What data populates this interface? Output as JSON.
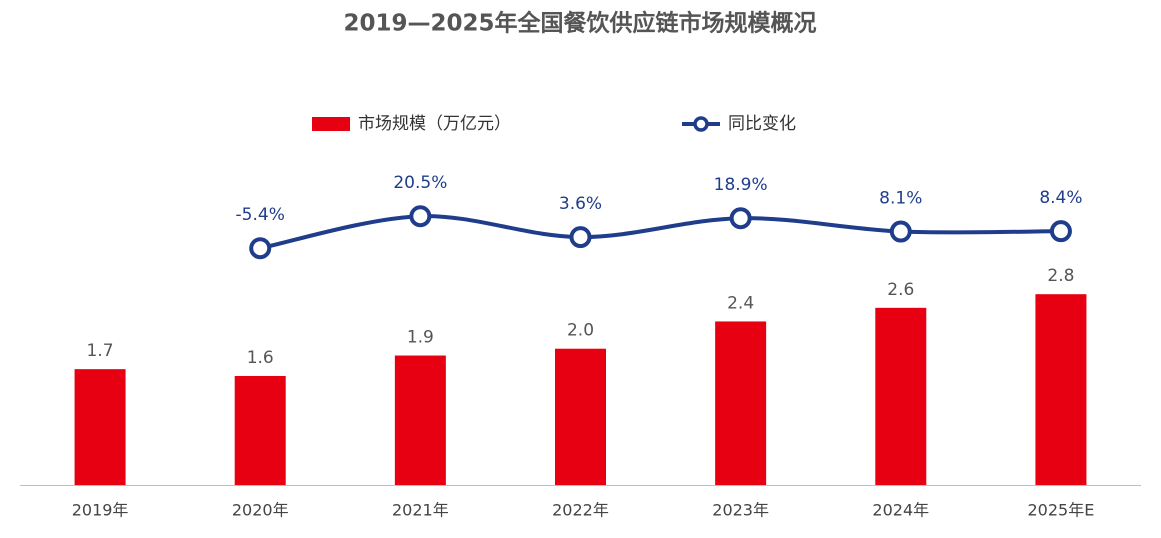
{
  "chart_data": {
    "type": "bar",
    "title": "2019—2025年全国餐饮供应链市场规模概况",
    "categories": [
      "2019年",
      "2020年",
      "2021年",
      "2022年",
      "2023年",
      "2024年",
      "2025年E"
    ],
    "series": [
      {
        "name": "市场规模（万亿元）",
        "type": "bar",
        "color": "#e60012",
        "values": [
          1.7,
          1.6,
          1.9,
          2.0,
          2.4,
          2.6,
          2.8
        ],
        "value_labels": [
          "1.7",
          "1.6",
          "1.9",
          "2.0",
          "2.4",
          "2.6",
          "2.8"
        ]
      },
      {
        "name": "同比变化",
        "type": "line",
        "axis": "y2",
        "color": "#1f3d8a",
        "values": [
          null,
          -5.4,
          20.5,
          3.6,
          18.9,
          8.1,
          8.4
        ],
        "value_labels": [
          null,
          "-5.4%",
          "20.5%",
          "3.6%",
          "18.9%",
          "8.1%",
          "8.4%"
        ]
      }
    ],
    "ylim": [
      0,
      7
    ],
    "y2lim": [
      -197,
      189
    ],
    "legend": "top"
  }
}
